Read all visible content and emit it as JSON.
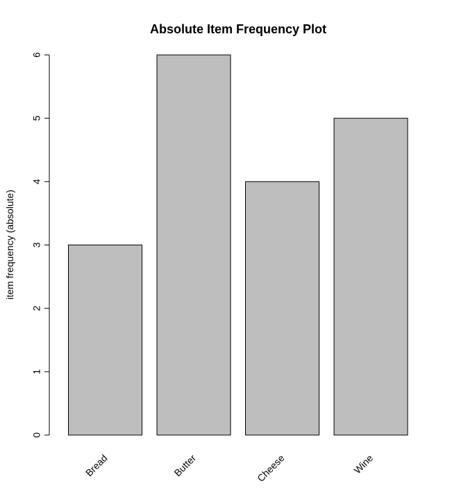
{
  "chart_data": {
    "type": "bar",
    "title": "Absolute Item Frequency Plot",
    "xlabel": "",
    "ylabel": "item frequency (absolute)",
    "categories": [
      "Bread",
      "Butter",
      "Cheese",
      "Wine"
    ],
    "values": [
      3,
      6,
      4,
      5
    ],
    "yticks": [
      0,
      1,
      2,
      3,
      4,
      5,
      6
    ],
    "ylim": [
      0,
      6
    ],
    "bar_color": "#bebebe",
    "grid": false,
    "legend": "none"
  }
}
